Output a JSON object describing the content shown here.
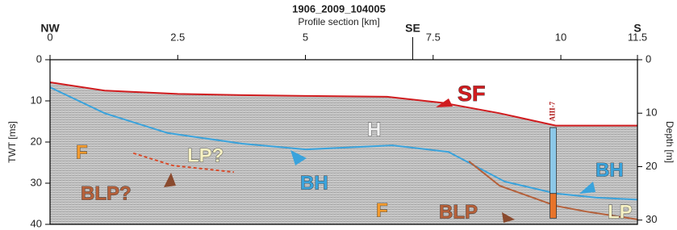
{
  "chart_data": {
    "type": "seismic-profile",
    "title": "1906_2009_104005",
    "x_label": "Profile section [km]",
    "y_label": "TWT [ms]",
    "y2_label": "Depth [m]",
    "xlim": [
      0,
      11.5
    ],
    "xticks": [
      0,
      2.5,
      5,
      7.5,
      10,
      11.5
    ],
    "ylim": [
      0,
      40
    ],
    "yticks": [
      0,
      10,
      20,
      30,
      40
    ],
    "y2lim": [
      0,
      30.8
    ],
    "y2ticks": [
      0,
      10,
      20,
      30
    ],
    "directions": [
      {
        "label": "NW",
        "value": 0
      },
      {
        "label": "SE",
        "value": 7.1
      },
      {
        "label": "S",
        "value": 11.5
      }
    ],
    "series": [
      {
        "color": "#d01c1f",
        "x": [
          0,
          1.07,
          2.5,
          3.76,
          5,
          6.6,
          7.7,
          8.8,
          9.9,
          11.5
        ],
        "values": [
          5.5,
          7.5,
          8.3,
          8.6,
          8.8,
          9.0,
          10.5,
          13,
          16,
          16
        ]
      },
      {
        "color": "#3aa3dc",
        "x": [
          0,
          1.07,
          2.3,
          3.76,
          5,
          6.7,
          7.8,
          8.9,
          9.9,
          10.7,
          11.5
        ],
        "values": [
          6.7,
          13,
          17.8,
          20.4,
          21.8,
          20.8,
          22.4,
          29.6,
          32.5,
          33.5,
          34
        ]
      },
      {
        "color": "#b5603a",
        "x": [
          8.2,
          8.8,
          9.9,
          10.5,
          11.5
        ],
        "values": [
          24.7,
          30.6,
          35.5,
          36.9,
          38.8
        ]
      },
      {
        "color": "#d84a2a",
        "dashed": true,
        "x": [
          1.63,
          2.4,
          3.6
        ],
        "values": [
          22.7,
          25.7,
          27.3
        ]
      }
    ],
    "borehole": {
      "label": "AIII-7",
      "x": 9.85,
      "top": 16.5,
      "split": 32.5,
      "bottom": 38.5
    },
    "annotations": [
      "SF",
      "H",
      "F",
      "F",
      "LP?",
      "BLP?",
      "BH",
      "BH",
      "BLP",
      "LP"
    ]
  }
}
